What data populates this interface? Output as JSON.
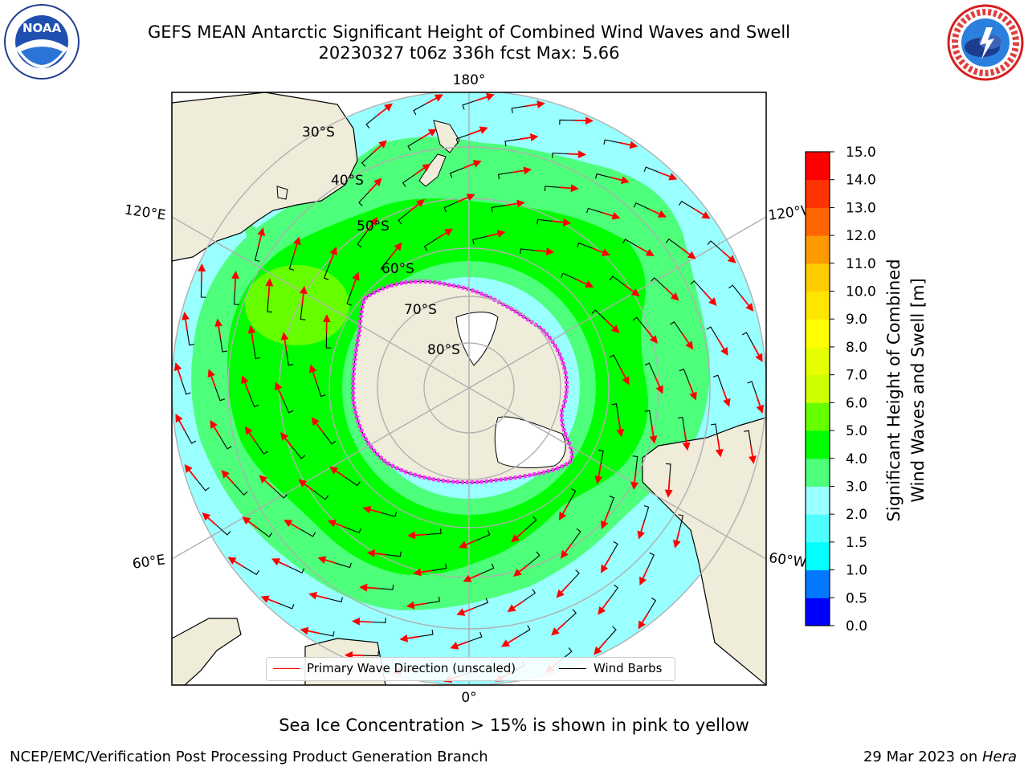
{
  "header": {
    "title_line1": "GEFS MEAN Antarctic Significant Height of Combined Wind Waves and Swell",
    "title_line2": "20230327 t06z 336h fcst   Max: 5.66"
  },
  "logos": {
    "noaa_text": "NOAA",
    "noaa_ring_text": "NATIONAL OCEANIC AND ATMOSPHERIC ADMINISTRATION · U.S. DEPARTMENT OF COMMERCE",
    "nws_ring_text": "NATIONAL WEATHER SERVICE"
  },
  "map": {
    "projection": "south-polar-stereographic",
    "longitude_labels": {
      "top": "180°",
      "bottom": "0°",
      "upper_left": "120°E",
      "upper_right": "120°W",
      "lower_left": "60°E",
      "lower_right": "60°W"
    },
    "latitude_labels": [
      "30°S",
      "40°S",
      "50°S",
      "60°S",
      "70°S",
      "80°S"
    ]
  },
  "legend": {
    "wave_label": "Primary Wave Direction (unscaled)",
    "wind_label": "Wind Barbs",
    "wave_color": "#ff0000",
    "wind_color": "#000000"
  },
  "colorbar": {
    "title": "Significant Height of Combined\nWind Waves and Swell [m]",
    "ticks": [
      "0.0",
      "0.5",
      "1.0",
      "1.5",
      "2.0",
      "3.0",
      "4.0",
      "5.0",
      "6.0",
      "7.0",
      "8.0",
      "9.0",
      "10.0",
      "11.0",
      "12.0",
      "13.0",
      "14.0",
      "15.0"
    ],
    "colors": [
      "#0000ff",
      "#0078ff",
      "#00ffff",
      "#4dffff",
      "#99ffff",
      "#4dff7a",
      "#00ff00",
      "#66ff00",
      "#ccff00",
      "#e6ff00",
      "#ffff00",
      "#ffe600",
      "#ffcc00",
      "#ff9900",
      "#ff6600",
      "#ff3300",
      "#ff0000"
    ]
  },
  "colors": {
    "land": "#efecda",
    "ice_white": "#ffffff",
    "sea_ice_pink": "#ff33ff",
    "graticule": "#b0b0b0"
  },
  "caption": "Sea Ice Concentration > 15% is shown in pink to yellow",
  "footer": {
    "left": "NCEP/EMC/Verification Post Processing Product Generation Branch",
    "right_date": "29 Mar 2023 on ",
    "right_host": "Hera"
  }
}
